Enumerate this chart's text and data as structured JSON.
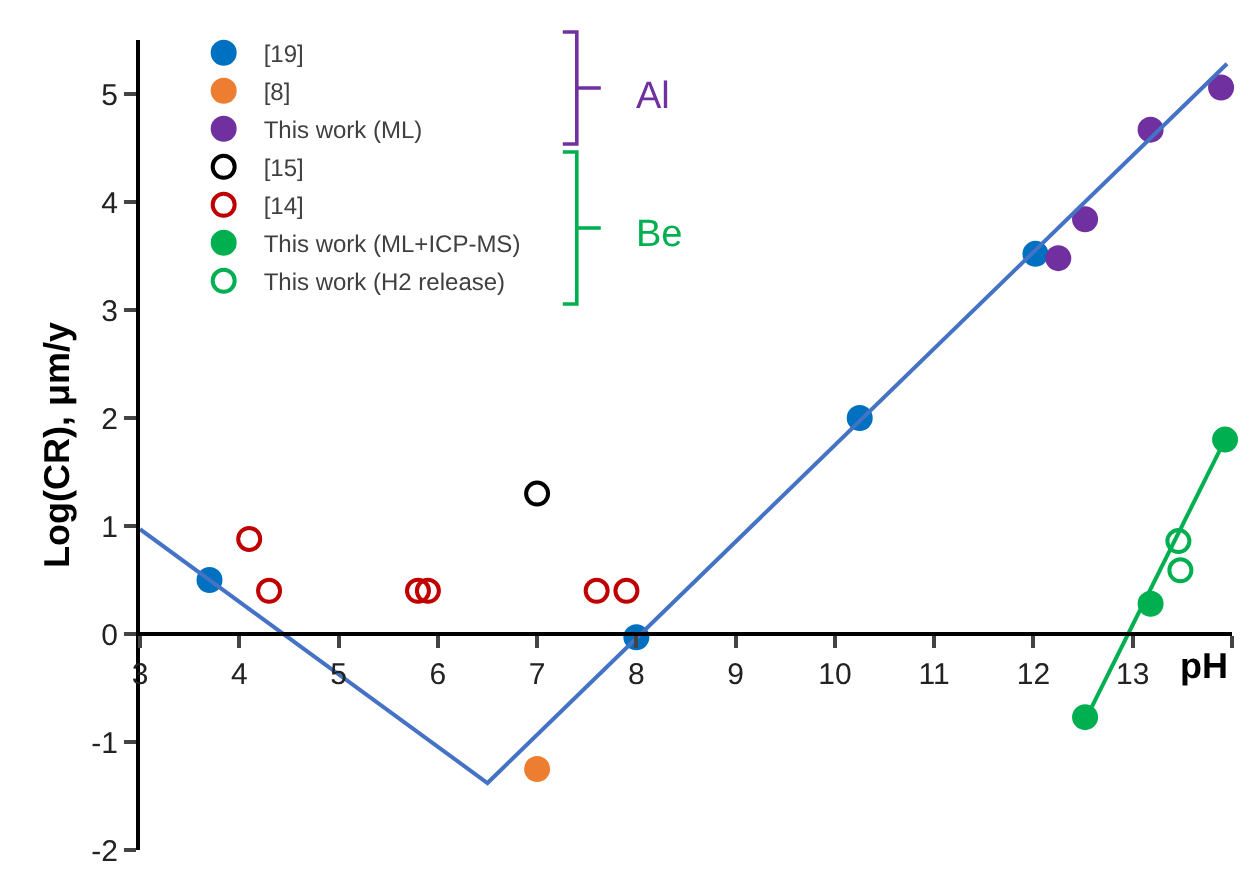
{
  "chart_data": {
    "type": "scatter",
    "xlabel": "pH",
    "ylabel": "Log(CR), μm/y",
    "xlim": [
      3,
      14
    ],
    "ylim": [
      -2,
      5.5
    ],
    "xticks": [
      3,
      4,
      5,
      6,
      7,
      8,
      9,
      10,
      11,
      12,
      13,
      {
        "value": 14,
        "label": null
      }
    ],
    "yticks": [
      -2,
      -1,
      0,
      1,
      2,
      3,
      4,
      5
    ],
    "grid": false,
    "legend": "top left",
    "marker": "circle",
    "annotations": [
      "Al",
      "Be"
    ],
    "series": [
      {
        "name": "[19]",
        "color": "#0070c0",
        "x": [
          3.7,
          8.0,
          10.25,
          12.02
        ],
        "values": [
          0.5,
          -0.03,
          2.0,
          3.52
        ]
      },
      {
        "name": "[8]",
        "color": "#ed7d31",
        "x": [
          7.0
        ],
        "values": [
          -1.25
        ]
      },
      {
        "name": "This work (ML)",
        "color": "#7030a0",
        "x": [
          12.25,
          12.52,
          13.18,
          13.89
        ],
        "values": [
          3.48,
          3.84,
          4.67,
          5.06
        ]
      },
      {
        "name": "[15]",
        "color": "#000000",
        "marker": "circle-open",
        "x": [
          7.0
        ],
        "values": [
          1.3
        ]
      },
      {
        "name": "[14]",
        "color": "#c00000",
        "marker": "circle-open",
        "x": [
          4.1,
          4.3,
          5.8,
          5.9,
          7.6,
          7.9
        ],
        "values": [
          0.88,
          0.4,
          0.4,
          0.4,
          0.4,
          0.4
        ]
      },
      {
        "name": "This work (ML+ICP-MS)",
        "color": "#00b050",
        "x": [
          12.52,
          13.18,
          13.93
        ],
        "values": [
          -0.77,
          0.28,
          1.8
        ]
      },
      {
        "name": "This work (H2 release)",
        "color": "#00b050",
        "marker": "circle-open",
        "x": [
          13.46,
          13.48
        ],
        "values": [
          0.86,
          0.59
        ]
      },
      {
        "type": "line",
        "color": "#4472c4",
        "marker": "none",
        "x": [
          3,
          6.5,
          13.95
        ],
        "values": [
          0.97,
          -1.38,
          5.28
        ]
      },
      {
        "type": "line",
        "color": "#00b050",
        "marker": "none",
        "x": [
          12.52,
          13.93
        ],
        "values": [
          -0.8,
          1.8
        ]
      }
    ]
  }
}
